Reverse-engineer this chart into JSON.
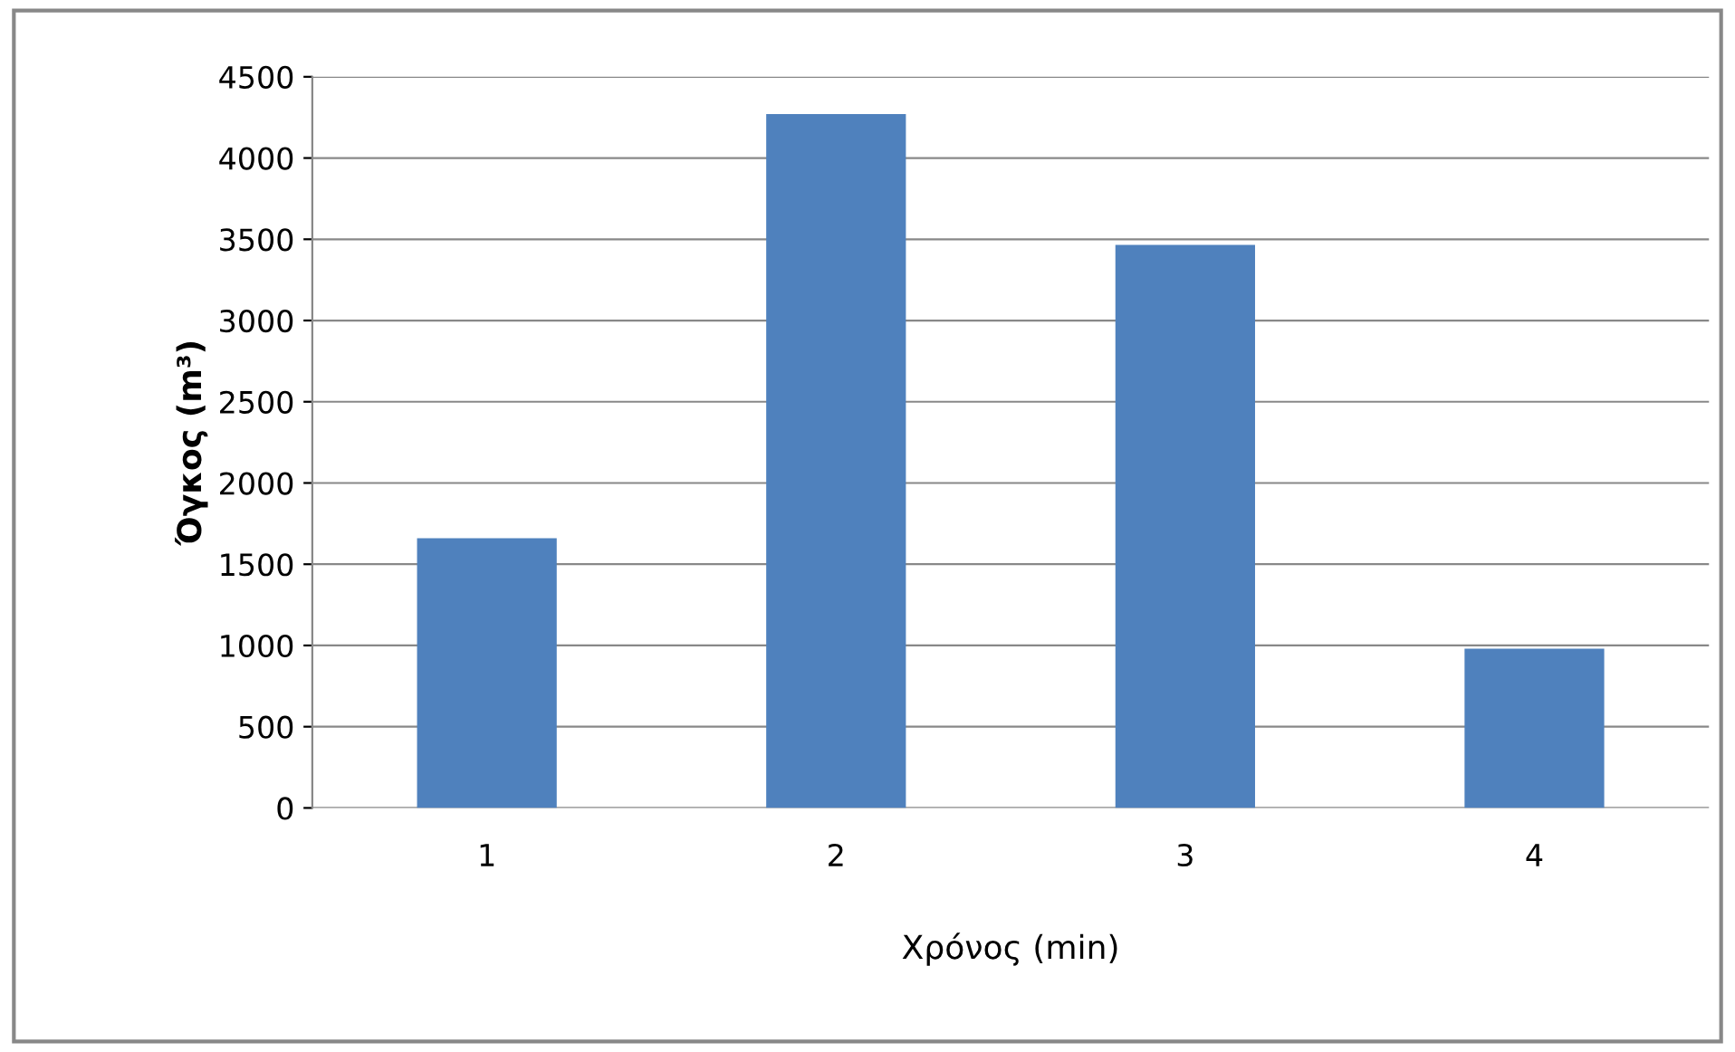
{
  "chart_data": {
    "type": "bar",
    "xlabel": "Χρόνος (min)",
    "ylabel": "Όγκος (m³)",
    "categories": [
      "1",
      "2",
      "3",
      "4"
    ],
    "values": [
      1660,
      4270,
      3465,
      980
    ],
    "color": "#4f81bd",
    "ylim": [
      0,
      4500
    ],
    "yticks": [
      0,
      500,
      1000,
      1500,
      2000,
      2500,
      3000,
      3500,
      4000,
      4500
    ],
    "grid": "y",
    "legend": false
  }
}
